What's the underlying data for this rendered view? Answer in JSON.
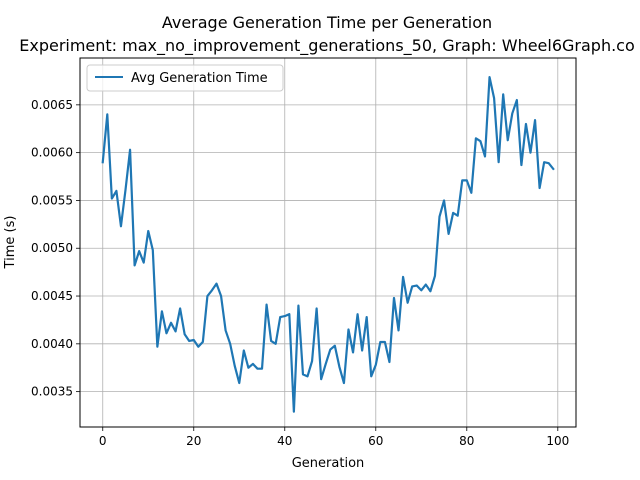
{
  "chart_data": {
    "type": "line",
    "title": "Average Generation Time per Generation",
    "subtitle": "Experiment: max_no_improvement_generations_50, Graph: Wheel6Graph.co",
    "xlabel": "Generation",
    "ylabel": "Time (s)",
    "xlim": [
      -5,
      104
    ],
    "ylim": [
      0.00313,
      0.00699
    ],
    "xticks": [
      0,
      20,
      40,
      60,
      80,
      100
    ],
    "xtick_labels": [
      "0",
      "20",
      "40",
      "60",
      "80",
      "100"
    ],
    "yticks": [
      0.0035,
      0.004,
      0.0045,
      0.005,
      0.0055,
      0.006,
      0.0065
    ],
    "ytick_labels": [
      "0.0035",
      "0.0040",
      "0.0045",
      "0.0050",
      "0.0055",
      "0.0060",
      "0.0065"
    ],
    "grid": true,
    "legend_position": "top-left",
    "color": "#1f77b4",
    "series": [
      {
        "name": "Avg Generation Time",
        "x": [
          0,
          1,
          2,
          3,
          4,
          5,
          6,
          7,
          8,
          9,
          10,
          11,
          12,
          13,
          14,
          15,
          16,
          17,
          18,
          19,
          20,
          21,
          22,
          23,
          24,
          25,
          26,
          27,
          28,
          29,
          30,
          31,
          32,
          33,
          34,
          35,
          36,
          37,
          38,
          39,
          40,
          41,
          42,
          43,
          44,
          45,
          46,
          47,
          48,
          49,
          50,
          51,
          52,
          53,
          54,
          55,
          56,
          57,
          58,
          59,
          60,
          61,
          62,
          63,
          64,
          65,
          66,
          67,
          68,
          69,
          70,
          71,
          72,
          73,
          74,
          75,
          76,
          77,
          78,
          79,
          80,
          81,
          82,
          83,
          84,
          85,
          86,
          87,
          88,
          89,
          90,
          91,
          92,
          93,
          94,
          95,
          96,
          97,
          98,
          99
        ],
        "values": [
          0.0059,
          0.0064,
          0.00552,
          0.0056,
          0.00523,
          0.00561,
          0.00603,
          0.00482,
          0.00497,
          0.00485,
          0.00518,
          0.00498,
          0.00397,
          0.00434,
          0.00411,
          0.00422,
          0.00413,
          0.00437,
          0.0041,
          0.00403,
          0.00404,
          0.00397,
          0.00402,
          0.0045,
          0.00456,
          0.00463,
          0.0045,
          0.00414,
          0.004,
          0.00377,
          0.00359,
          0.00393,
          0.00375,
          0.00379,
          0.00374,
          0.00374,
          0.00441,
          0.00403,
          0.004,
          0.00428,
          0.00429,
          0.00431,
          0.00329,
          0.0044,
          0.00368,
          0.00366,
          0.00382,
          0.00437,
          0.00363,
          0.00379,
          0.00394,
          0.00398,
          0.00376,
          0.00359,
          0.00415,
          0.00391,
          0.00431,
          0.00393,
          0.00428,
          0.00366,
          0.00378,
          0.00402,
          0.00402,
          0.00381,
          0.00448,
          0.00414,
          0.0047,
          0.00443,
          0.0046,
          0.00461,
          0.00456,
          0.00462,
          0.00455,
          0.00471,
          0.00533,
          0.0055,
          0.00515,
          0.00537,
          0.00534,
          0.00571,
          0.00571,
          0.00558,
          0.00615,
          0.00612,
          0.00596,
          0.00679,
          0.00657,
          0.0059,
          0.00661,
          0.00613,
          0.00641,
          0.00655,
          0.00587,
          0.0063,
          0.006,
          0.00634,
          0.00563,
          0.0059,
          0.00589,
          0.00583
        ]
      }
    ]
  }
}
